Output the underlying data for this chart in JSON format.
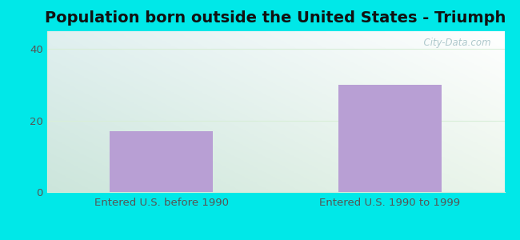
{
  "title": "Population born outside the United States - Triumph",
  "categories": [
    "Entered U.S. before 1990",
    "Entered U.S. 1990 to 1999"
  ],
  "values": [
    17,
    30
  ],
  "bar_color": "#b89fd4",
  "ylim": [
    0,
    45
  ],
  "yticks": [
    0,
    20,
    40
  ],
  "background_outer": "#00e8e8",
  "grid_color": "#d8eed8",
  "tick_color": "#555555",
  "title_fontsize": 14,
  "label_fontsize": 9.5,
  "watermark_text": "  City-Data.com",
  "watermark_color": "#aec8cc",
  "bg_color_topleft": "#d8f0d8",
  "bg_color_topright": "#e8f8f8",
  "bg_color_bottomleft": "#c8ecc8",
  "bg_color_bottomright": "#f0fcfc"
}
